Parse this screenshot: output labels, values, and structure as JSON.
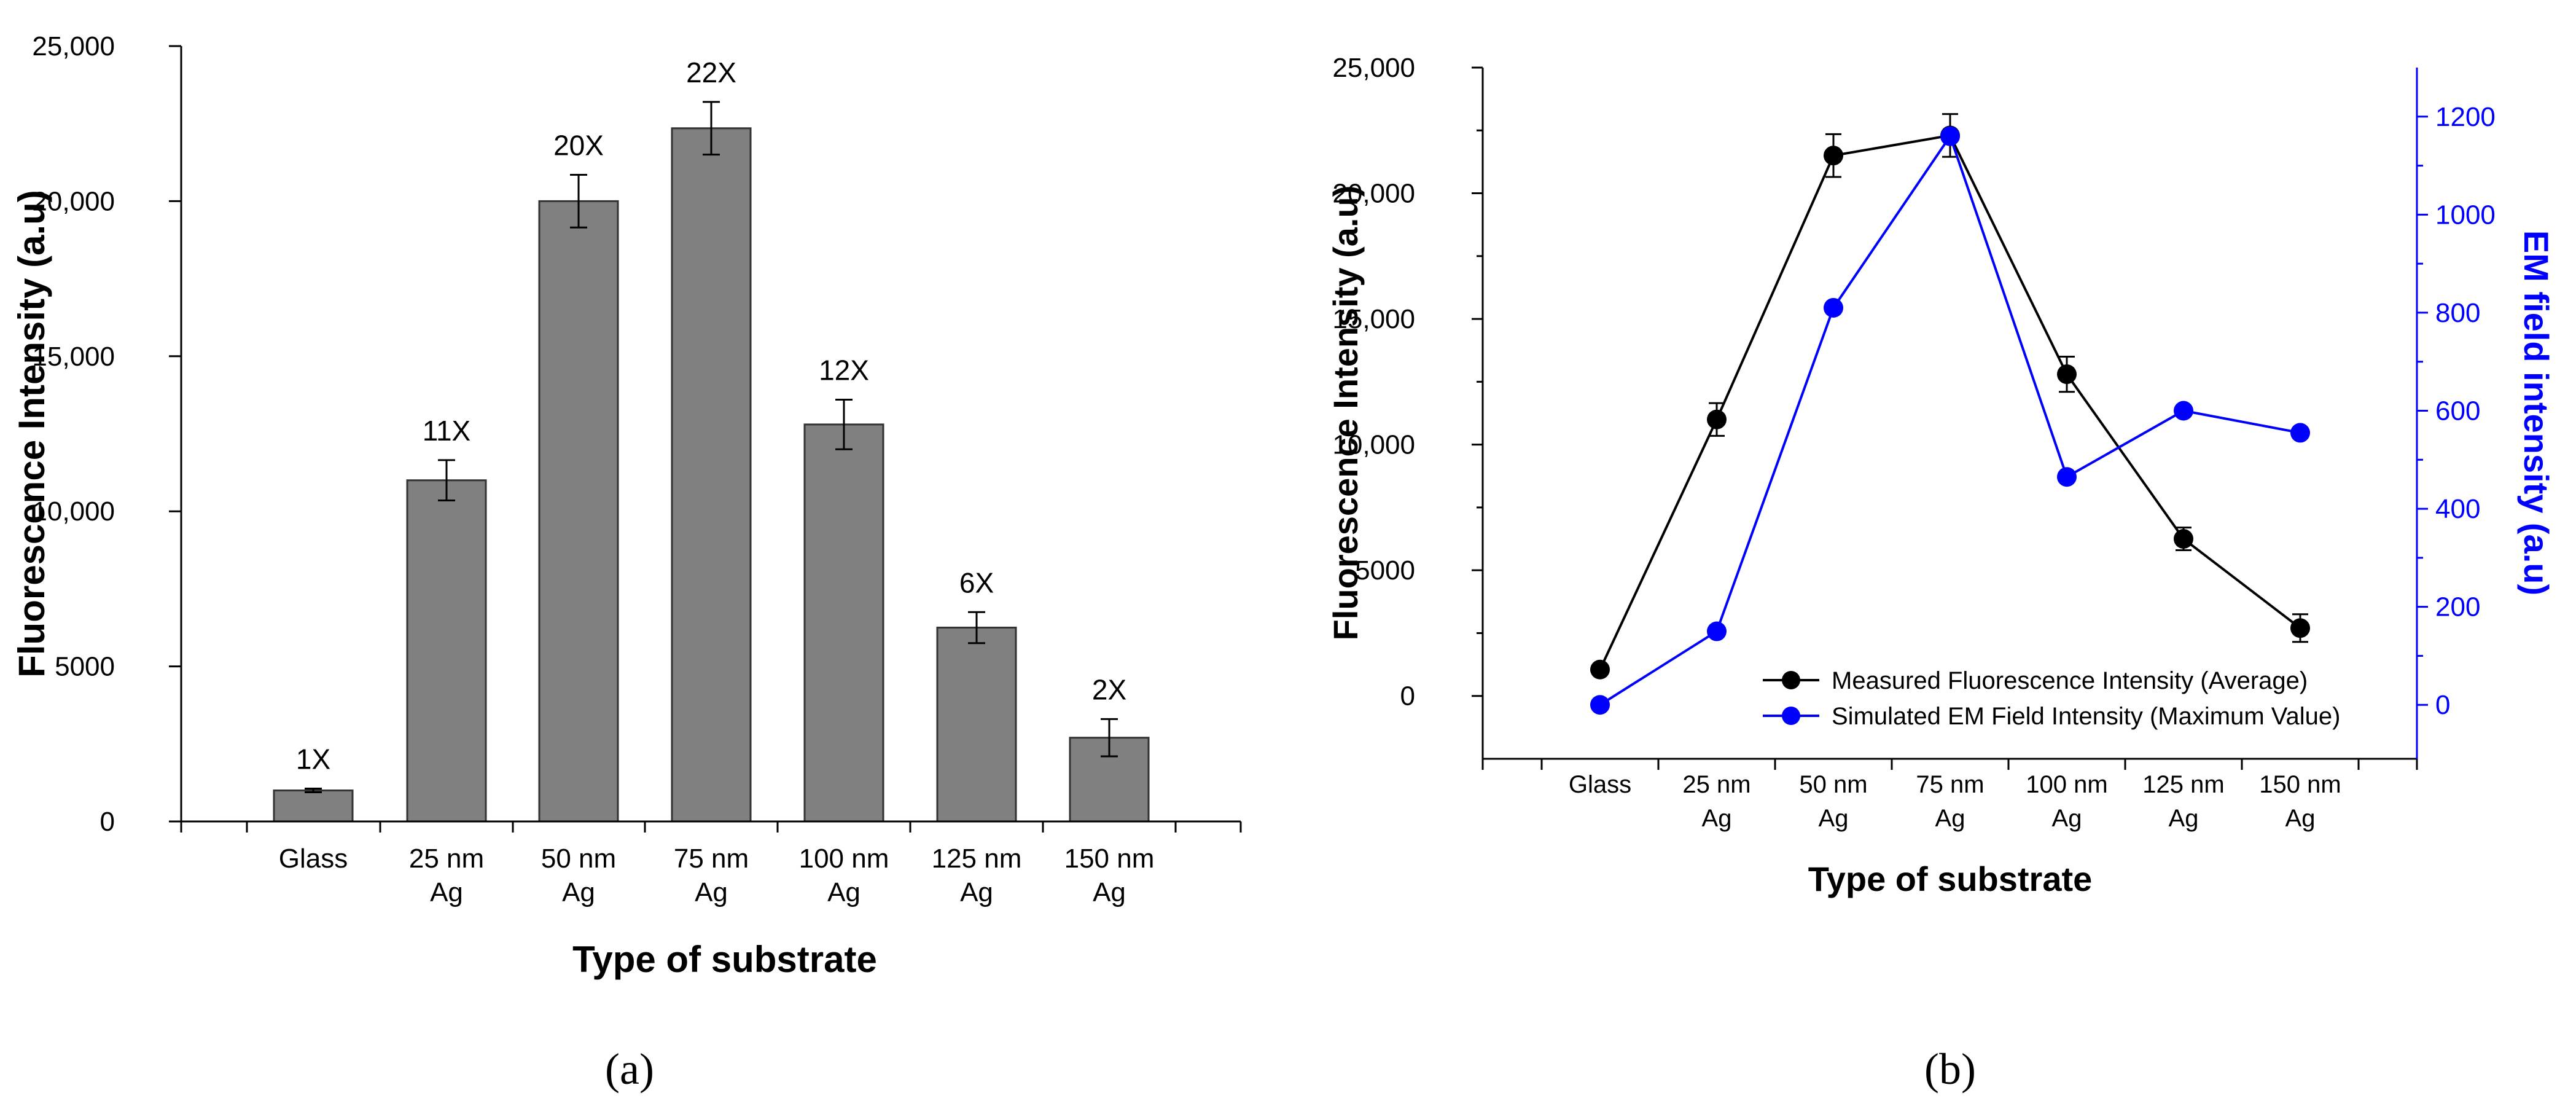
{
  "chart_data": [
    {
      "type": "bar",
      "panel_label": "(a)",
      "categories": [
        [
          "Glass"
        ],
        [
          "25 nm",
          "Ag"
        ],
        [
          "50 nm",
          "Ag"
        ],
        [
          "75 nm",
          "Ag"
        ],
        [
          "100 nm",
          "Ag"
        ],
        [
          "125 nm",
          "Ag"
        ],
        [
          "150 nm",
          "Ag"
        ]
      ],
      "values": [
        1000,
        11000,
        20000,
        22350,
        12800,
        6250,
        2700
      ],
      "errors": [
        60,
        650,
        850,
        850,
        800,
        500,
        600
      ],
      "bar_labels": [
        "1X",
        "11X",
        "20X",
        "22X",
        "12X",
        "6X",
        "2X"
      ],
      "xlabel": "Type of substrate",
      "ylabel": "Fluorescence Intensity (a.u)",
      "ylim": [
        0,
        25000
      ],
      "yticks": [
        0,
        5000,
        10000,
        15000,
        20000,
        25000
      ],
      "ytick_labels": [
        "0",
        "5000",
        "10,000",
        "15,000",
        "20,000",
        "25,000"
      ],
      "bar_color": "#808080"
    },
    {
      "type": "line",
      "panel_label": "(b)",
      "categories": [
        [
          "Glass"
        ],
        [
          "25 nm",
          "Ag"
        ],
        [
          "50 nm",
          "Ag"
        ],
        [
          "75 nm",
          "Ag"
        ],
        [
          "100 nm",
          "Ag"
        ],
        [
          "125 nm",
          "Ag"
        ],
        [
          "150 nm",
          "Ag"
        ]
      ],
      "series": [
        {
          "name": "Measured Fluorescence Intensity (Average)",
          "axis": "left",
          "color": "#000000",
          "values": [
            1050,
            11000,
            21500,
            22300,
            12800,
            6250,
            2700
          ],
          "errors": [
            80,
            650,
            850,
            850,
            700,
            450,
            550
          ]
        },
        {
          "name": "Simulated EM Field Intensity (Maximum Value)",
          "axis": "right",
          "color": "#0000ff",
          "values": [
            0,
            150,
            810,
            1160,
            465,
            600,
            555
          ]
        }
      ],
      "xlabel": "Type of substrate",
      "ylabel_left": "Fluorescence Intensity (a.u)",
      "ylabel_right": "EM field intensity (a.u)",
      "ylim_left": [
        -2500,
        25000
      ],
      "ylim_right": [
        -110,
        1300
      ],
      "yticks_left": [
        0,
        5000,
        10000,
        15000,
        20000,
        25000
      ],
      "ytick_labels_left": [
        "0",
        "5000",
        "10,000",
        "15,000",
        "20,000",
        "25,000"
      ],
      "yticks_right": [
        0,
        200,
        400,
        600,
        800,
        1000,
        1200
      ],
      "ytick_labels_right": [
        "0",
        "200",
        "400",
        "600",
        "800",
        "1000",
        "1200"
      ],
      "legend_position": "bottom-right"
    }
  ]
}
